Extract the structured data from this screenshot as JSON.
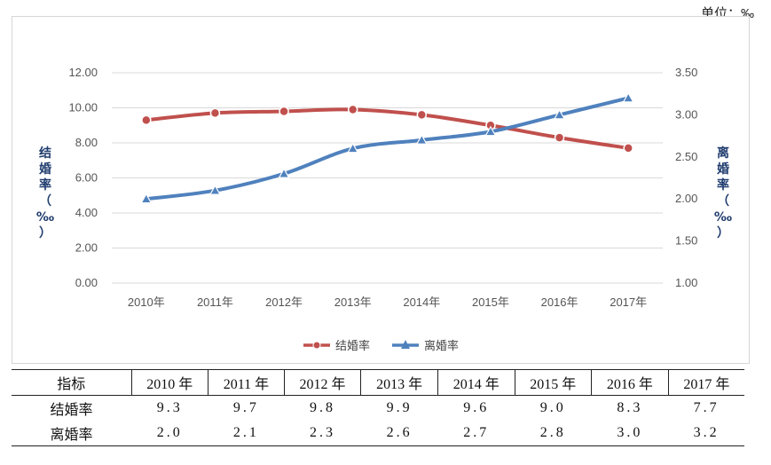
{
  "unit_label": "单位：‰",
  "chart_data": {
    "type": "line",
    "categories": [
      "2010年",
      "2011年",
      "2012年",
      "2013年",
      "2014年",
      "2015年",
      "2016年",
      "2017年"
    ],
    "series": [
      {
        "name": "结婚率",
        "axis": "left",
        "values": [
          9.3,
          9.7,
          9.8,
          9.9,
          9.6,
          9.0,
          8.3,
          7.7
        ],
        "color": "#c0504d",
        "marker": "circle"
      },
      {
        "name": "离婚率",
        "axis": "right",
        "values": [
          2.0,
          2.1,
          2.3,
          2.6,
          2.7,
          2.8,
          3.0,
          3.2
        ],
        "color": "#4f81bd",
        "marker": "triangle"
      }
    ],
    "y_left": {
      "label": "结婚率（‰）",
      "ylim": [
        0,
        12
      ],
      "ticks": [
        "0.00",
        "2.00",
        "4.00",
        "6.00",
        "8.00",
        "10.00",
        "12.00"
      ]
    },
    "y_right": {
      "label": "离婚率（‰）",
      "ylim": [
        1,
        3.5
      ],
      "ticks": [
        "1.00",
        "1.50",
        "2.00",
        "2.50",
        "3.00",
        "3.50"
      ]
    },
    "grid": true,
    "legend_position": "bottom"
  },
  "table": {
    "header": [
      "指标",
      "2010 年",
      "2011 年",
      "2012 年",
      "2013 年",
      "2014 年",
      "2015 年",
      "2016 年",
      "2017 年"
    ],
    "rows": [
      {
        "label": "结婚率",
        "values": [
          "9.3",
          "9.7",
          "9.8",
          "9.9",
          "9.6",
          "9.0",
          "8.3",
          "7.7"
        ]
      },
      {
        "label": "离婚率",
        "values": [
          "2.0",
          "2.1",
          "2.3",
          "2.6",
          "2.7",
          "2.8",
          "3.0",
          "3.2"
        ]
      }
    ]
  }
}
